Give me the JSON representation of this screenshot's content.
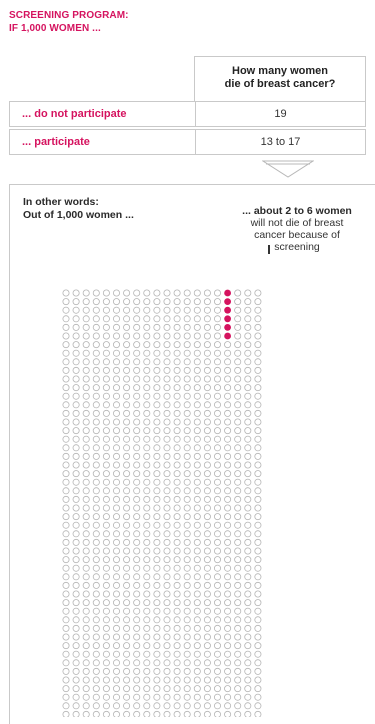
{
  "heading": {
    "line1": "SCREENING PROGRAM:",
    "line2": "IF 1,000 WOMEN ..."
  },
  "table": {
    "column_header_line1": "How many women",
    "column_header_line2": "die of breast cancer?",
    "rows": [
      {
        "label": "... do not participate",
        "value": "19"
      },
      {
        "label": "... participate",
        "value": "13 to 17"
      }
    ]
  },
  "panel": {
    "intro_line1": "In other words:",
    "intro_line2": "Out of 1,000 women ...",
    "annotation_line1": "... about 2 to 6 women",
    "annotation_line2": "will not die of breast",
    "annotation_line3": "cancer because of",
    "annotation_line4": "screening"
  },
  "chart_data": {
    "type": "icon-array",
    "total": 1000,
    "columns": 20,
    "rows": 50,
    "highlighted": 6,
    "highlighted_column": 16,
    "colors": {
      "highlight": "#d5135f",
      "outline": "#b5b5b5",
      "heading_accent": "#d5135f"
    }
  }
}
